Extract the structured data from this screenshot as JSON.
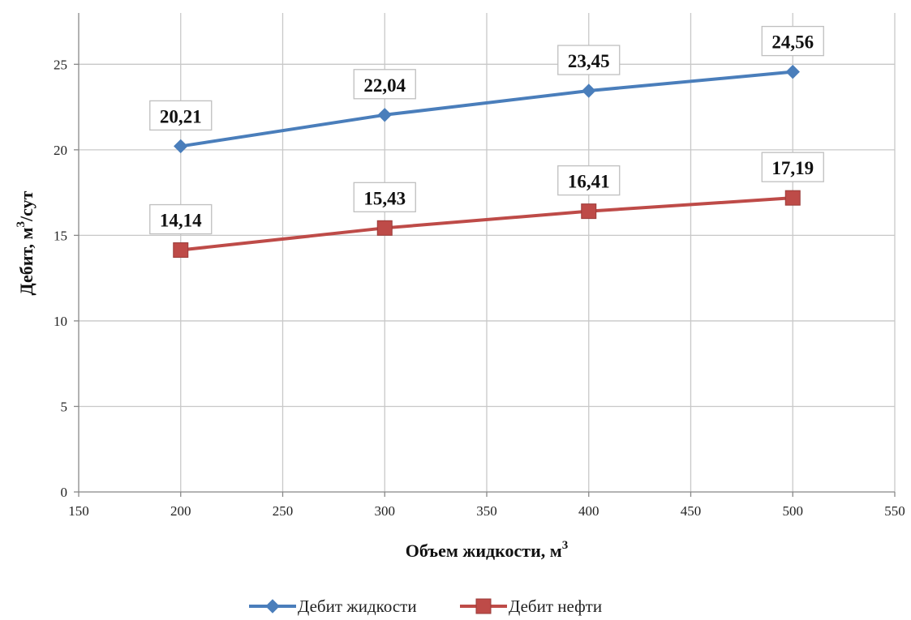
{
  "chart_data": {
    "type": "line",
    "xlabel": "Объем жидкости, м",
    "xlabel_sup": "3",
    "ylabel": "Дебит, м",
    "ylabel_sup": "3",
    "ylabel_tail": "/сут",
    "xlim": [
      150,
      550
    ],
    "ylim": [
      0,
      28
    ],
    "xticks": [
      150,
      200,
      250,
      300,
      350,
      400,
      450,
      500,
      550
    ],
    "yticks": [
      0,
      5,
      10,
      15,
      20,
      25
    ],
    "grid": true,
    "legend_position": "bottom",
    "series": [
      {
        "name": "Дебит жидкости",
        "color": "#4a7ebb",
        "marker": "diamond",
        "points": [
          {
            "x": 200,
            "y": 20.21,
            "label": "20,21"
          },
          {
            "x": 300,
            "y": 22.04,
            "label": "22,04"
          },
          {
            "x": 400,
            "y": 23.45,
            "label": "23,45"
          },
          {
            "x": 500,
            "y": 24.56,
            "label": "24,56"
          }
        ]
      },
      {
        "name": "Дебит нефти",
        "color": "#be4b48",
        "marker": "square",
        "points": [
          {
            "x": 200,
            "y": 14.14,
            "label": "14,14"
          },
          {
            "x": 300,
            "y": 15.43,
            "label": "15,43"
          },
          {
            "x": 400,
            "y": 16.41,
            "label": "16,41"
          },
          {
            "x": 500,
            "y": 17.19,
            "label": "17,19"
          }
        ]
      }
    ]
  }
}
